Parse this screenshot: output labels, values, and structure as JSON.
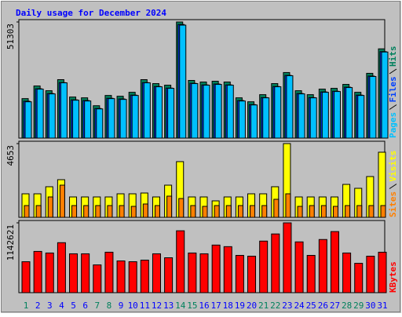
{
  "chart_data": [
    {
      "type": "bar",
      "title": "Daily usage for December 2024",
      "ylim": [
        0,
        51303
      ],
      "yticks": [
        51303
      ],
      "series": [
        {
          "name": "Hits",
          "color": "#00805c",
          "values": [
            17450,
            23034,
            20940,
            25826,
            18148,
            17799,
            14309,
            18846,
            18497,
            20242,
            25826,
            24081,
            23383,
            51303,
            25477,
            24779,
            25128,
            24779,
            17799,
            16054,
            19195,
            24081,
            28967,
            20940,
            19195,
            21638,
            21987,
            23732,
            20242,
            28618,
            39437
          ]
        },
        {
          "name": "Files",
          "color": "#0040ff",
          "values": [
            16300,
            21800,
            19700,
            24500,
            16900,
            16600,
            13100,
            17600,
            17300,
            19000,
            24500,
            22800,
            22100,
            50200,
            24200,
            23500,
            23900,
            23500,
            16600,
            14800,
            17900,
            22800,
            27700,
            19700,
            17900,
            20400,
            20700,
            22500,
            19000,
            27400,
            38200
          ]
        },
        {
          "name": "Pages",
          "color": "#00c0ff",
          "values": [
            16050,
            21634,
            19540,
            24426,
            16748,
            16399,
            12909,
            17446,
            17097,
            18842,
            24426,
            22681,
            21983,
            49907,
            24077,
            23379,
            23728,
            23379,
            16399,
            14654,
            17795,
            22681,
            27567,
            19540,
            17795,
            20238,
            20587,
            22332,
            18842,
            27218,
            38037
          ]
        }
      ]
    },
    {
      "type": "bar",
      "ylim": [
        0,
        4653
      ],
      "yticks": [
        4653
      ],
      "series": [
        {
          "name": "Visits",
          "color": "#ffff00",
          "values": [
            1485,
            1485,
            1931,
            2376,
            1287,
            1287,
            1287,
            1287,
            1485,
            1485,
            1535,
            1287,
            2030,
            3515,
            1287,
            1287,
            1040,
            1287,
            1287,
            1485,
            1485,
            1931,
            4653,
            1287,
            1287,
            1287,
            1287,
            2079,
            1832,
            2574,
            4109
          ]
        },
        {
          "name": "Sites",
          "color": "#ff8000",
          "values": [
            743,
            743,
            1287,
            2030,
            743,
            743,
            743,
            743,
            743,
            693,
            842,
            743,
            1337,
            1188,
            743,
            693,
            743,
            743,
            743,
            743,
            743,
            1139,
            1485,
            693,
            743,
            743,
            693,
            743,
            743,
            743,
            743
          ]
        }
      ]
    },
    {
      "type": "bar",
      "ylim": [
        0,
        1142621
      ],
      "yticks": [
        1142621
      ],
      "categories": [
        "1",
        "2",
        "3",
        "4",
        "5",
        "6",
        "7",
        "8",
        "9",
        "10",
        "11",
        "12",
        "13",
        "14",
        "15",
        "16",
        "17",
        "18",
        "19",
        "20",
        "21",
        "22",
        "23",
        "24",
        "25",
        "26",
        "27",
        "28",
        "29",
        "30",
        "31"
      ],
      "category_colors": [
        "#00805c",
        "#0000ff",
        "#0000ff",
        "#0000ff",
        "#0000ff",
        "#0000ff",
        "#00805c",
        "#00805c",
        "#0000ff",
        "#0000ff",
        "#0000ff",
        "#0000ff",
        "#0000ff",
        "#00805c",
        "#00805c",
        "#0000ff",
        "#0000ff",
        "#0000ff",
        "#0000ff",
        "#0000ff",
        "#00805c",
        "#00805c",
        "#0000ff",
        "#0000ff",
        "#0000ff",
        "#0000ff",
        "#0000ff",
        "#00805c",
        "#00805c",
        "#0000ff",
        "#0000ff"
      ],
      "series": [
        {
          "name": "KBytes",
          "color": "#ff0000",
          "values": [
            506376,
            675168,
            649200,
            817992,
            636216,
            636216,
            454440,
            662184,
            519360,
            506376,
            532344,
            636216,
            571296,
            1012752,
            649200,
            636216,
            779040,
            753072,
            610248,
            597264,
            843960,
            960816,
            1142621,
            830976,
            610248,
            869928,
            999768,
            649200,
            480408,
            597264,
            662184
          ]
        }
      ]
    }
  ]
}
